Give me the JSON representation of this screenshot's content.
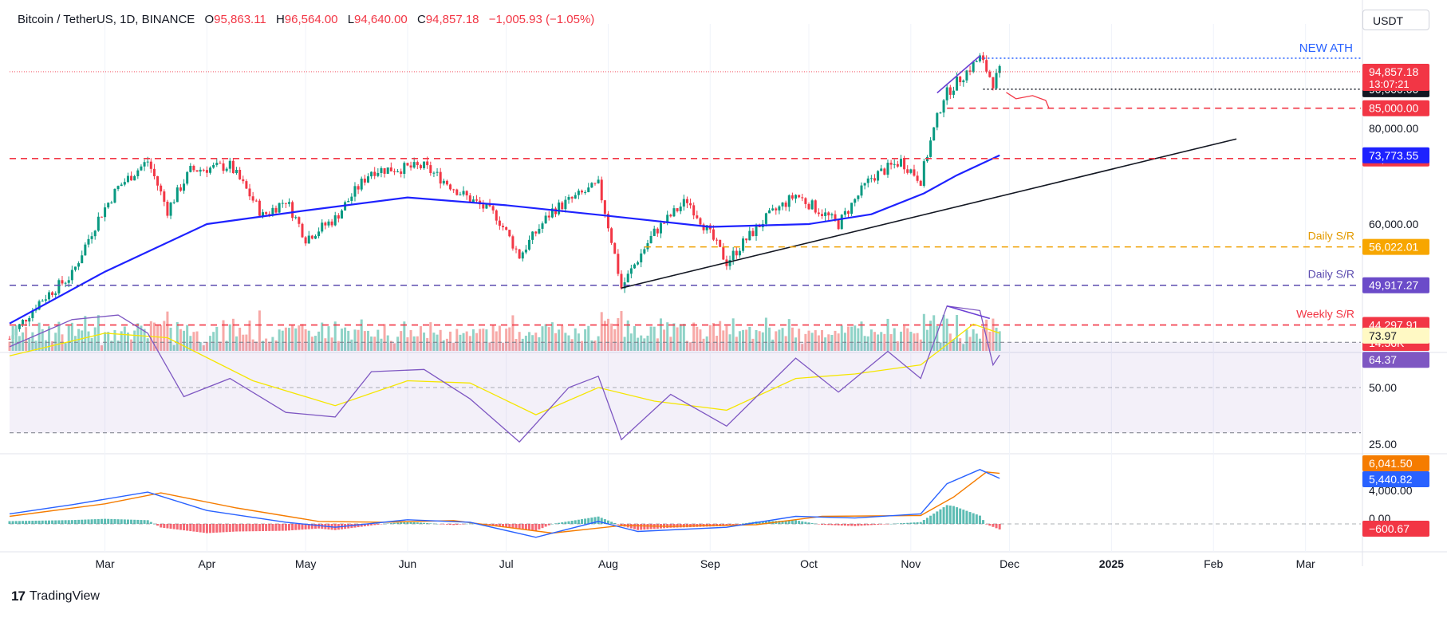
{
  "header": {
    "symbol": "Bitcoin / TetherUS, 1D, BINANCE",
    "open_label": "O",
    "open": "95,863.11",
    "high_label": "H",
    "high": "96,564.00",
    "low_label": "L",
    "low": "94,640.00",
    "close_label": "C",
    "close": "94,857.18",
    "change": "−1,005.93 (−1.05%)"
  },
  "currency_button": "USDT",
  "branding": "TradingView",
  "chart_data": {
    "type": "candlestick",
    "symbol": "BTC/USDT",
    "interval": "1D",
    "x_ticks": [
      "Mar",
      "Apr",
      "May",
      "Jun",
      "Jul",
      "Aug",
      "Sep",
      "Oct",
      "Nov",
      "Dec",
      "2025",
      "Feb",
      "Mar"
    ],
    "y_ticks": [
      "80,000.00",
      "60,000.00"
    ],
    "y_scale": "log",
    "price_path": [
      [
        "2024-02-01",
        42500
      ],
      [
        "2024-02-10",
        47500
      ],
      [
        "2024-02-20",
        51500
      ],
      [
        "2024-02-28",
        61000
      ],
      [
        "2024-03-05",
        67000
      ],
      [
        "2024-03-14",
        72500
      ],
      [
        "2024-03-20",
        62500
      ],
      [
        "2024-03-27",
        70500
      ],
      [
        "2024-04-08",
        71500
      ],
      [
        "2024-04-18",
        61500
      ],
      [
        "2024-04-25",
        64500
      ],
      [
        "2024-05-01",
        57500
      ],
      [
        "2024-05-10",
        61000
      ],
      [
        "2024-05-21",
        70500
      ],
      [
        "2024-06-06",
        71300
      ],
      [
        "2024-06-18",
        65500
      ],
      [
        "2024-06-28",
        61500
      ],
      [
        "2024-07-05",
        54500
      ],
      [
        "2024-07-15",
        62500
      ],
      [
        "2024-07-29",
        67500
      ],
      [
        "2024-08-05",
        49500
      ],
      [
        "2024-08-15",
        58500
      ],
      [
        "2024-08-25",
        64500
      ],
      [
        "2024-09-06",
        53500
      ],
      [
        "2024-09-17",
        60500
      ],
      [
        "2024-09-27",
        65500
      ],
      [
        "2024-10-10",
        60000
      ],
      [
        "2024-10-20",
        69000
      ],
      [
        "2024-10-29",
        72500
      ],
      [
        "2024-11-04",
        68500
      ],
      [
        "2024-11-11",
        88000
      ],
      [
        "2024-11-22",
        98900
      ],
      [
        "2024-11-26",
        91800
      ],
      [
        "2024-11-28",
        94857
      ]
    ],
    "ma_line": {
      "color": "#1e22ff",
      "points": [
        [
          "2024-02-01",
          44500
        ],
        [
          "2024-03-01",
          52000
        ],
        [
          "2024-04-01",
          60000
        ],
        [
          "2024-05-01",
          62500
        ],
        [
          "2024-06-01",
          65000
        ],
        [
          "2024-07-01",
          63500
        ],
        [
          "2024-08-01",
          61500
        ],
        [
          "2024-09-01",
          59500
        ],
        [
          "2024-10-01",
          60000
        ],
        [
          "2024-10-20",
          61800
        ],
        [
          "2024-11-05",
          65800
        ],
        [
          "2024-11-15",
          69500
        ],
        [
          "2024-11-28",
          73773.55
        ]
      ]
    },
    "levels": [
      {
        "price": 90000.0,
        "label": "90,000.00",
        "style": "dotted",
        "color": "#131722",
        "tag_bg": "#131722"
      },
      {
        "price": 85000.0,
        "label": "85,000.00",
        "style": "dashed",
        "color": "#f23645",
        "tag_bg": "#f23645"
      },
      {
        "price": 73072.41,
        "label": "73,072.41",
        "style": "dashed",
        "color": "#f23645",
        "tag_bg": "#f23645"
      },
      {
        "price": 56022.01,
        "label": "56,022.01",
        "style": "dashed",
        "color": "#f0a000",
        "tag_bg": "#f7a600",
        "annotation": "Daily S/R",
        "annotation_color": "#e39a00"
      },
      {
        "price": 49917.27,
        "label": "49,917.27",
        "style": "dashed",
        "color": "#5b4baf",
        "tag_bg": "#6b4bc9",
        "annotation": "Daily S/R",
        "annotation_color": "#5b4baf"
      },
      {
        "price": 44297.91,
        "label": "44,297.91",
        "style": "dashed",
        "color": "#f23645",
        "tag_bg": "#f23645",
        "annotation": "Weekly S/R",
        "annotation_color": "#f23645"
      }
    ],
    "ath_label": "NEW ATH",
    "ath_price": 99500,
    "last_price_tag": {
      "price": 94857.18,
      "label": "94,857.18",
      "countdown": "13:07:21",
      "color": "#f23645"
    },
    "ma_tag": {
      "price": 73773.55,
      "label": "73,773.55",
      "color": "#1e22ff"
    },
    "trendline": {
      "from": [
        "2024-08-05",
        49500
      ],
      "to": [
        "2025-02-08",
        77500
      ],
      "color": "#131722"
    },
    "volume": {
      "last_label": "14.56K",
      "last_color": "#f23645"
    },
    "rsi": {
      "rsi_label": "64.37",
      "rsi_color": "#7e57c2",
      "ma_label": "73.97",
      "ma_color": "#f5e600",
      "ticks": [
        "50.00",
        "25.00"
      ],
      "bands": [
        70,
        30
      ],
      "path": [
        [
          "2024-02-01",
          68
        ],
        [
          "2024-02-20",
          80
        ],
        [
          "2024-03-05",
          82
        ],
        [
          "2024-03-14",
          74
        ],
        [
          "2024-03-25",
          46
        ],
        [
          "2024-04-08",
          54
        ],
        [
          "2024-04-25",
          39
        ],
        [
          "2024-05-10",
          37
        ],
        [
          "2024-05-21",
          57
        ],
        [
          "2024-06-06",
          58
        ],
        [
          "2024-06-20",
          45
        ],
        [
          "2024-07-05",
          26
        ],
        [
          "2024-07-20",
          50
        ],
        [
          "2024-07-29",
          55
        ],
        [
          "2024-08-05",
          27
        ],
        [
          "2024-08-20",
          47
        ],
        [
          "2024-09-06",
          33
        ],
        [
          "2024-09-27",
          63
        ],
        [
          "2024-10-10",
          48
        ],
        [
          "2024-10-25",
          66
        ],
        [
          "2024-11-04",
          54
        ],
        [
          "2024-11-12",
          86
        ],
        [
          "2024-11-22",
          84
        ],
        [
          "2024-11-26",
          60
        ],
        [
          "2024-11-28",
          64.37
        ]
      ],
      "ma_path": [
        [
          "2024-02-01",
          64
        ],
        [
          "2024-03-01",
          74
        ],
        [
          "2024-03-20",
          72
        ],
        [
          "2024-04-15",
          53
        ],
        [
          "2024-05-10",
          42
        ],
        [
          "2024-06-01",
          53
        ],
        [
          "2024-06-20",
          52
        ],
        [
          "2024-07-10",
          38
        ],
        [
          "2024-07-29",
          50
        ],
        [
          "2024-08-15",
          44
        ],
        [
          "2024-09-06",
          40
        ],
        [
          "2024-09-27",
          54
        ],
        [
          "2024-10-15",
          56
        ],
        [
          "2024-11-04",
          60
        ],
        [
          "2024-11-20",
          78
        ],
        [
          "2024-11-28",
          73.97
        ]
      ]
    },
    "macd": {
      "macd_label": "5,440.82",
      "macd_color": "#2962ff",
      "signal_label": "6,041.50",
      "signal_color": "#f57c00",
      "hist_label": "−600.67",
      "hist_color": "#f23645",
      "ticks": [
        "4,000.00",
        "0.00"
      ],
      "macd_path": [
        [
          "2024-02-01",
          1200
        ],
        [
          "2024-02-20",
          2300
        ],
        [
          "2024-03-14",
          3800
        ],
        [
          "2024-04-01",
          1600
        ],
        [
          "2024-04-25",
          200
        ],
        [
          "2024-05-10",
          -400
        ],
        [
          "2024-06-01",
          500
        ],
        [
          "2024-06-20",
          200
        ],
        [
          "2024-07-10",
          -1600
        ],
        [
          "2024-07-29",
          300
        ],
        [
          "2024-08-10",
          -900
        ],
        [
          "2024-09-06",
          -400
        ],
        [
          "2024-09-27",
          900
        ],
        [
          "2024-10-15",
          700
        ],
        [
          "2024-11-04",
          1200
        ],
        [
          "2024-11-12",
          4800
        ],
        [
          "2024-11-22",
          6500
        ],
        [
          "2024-11-28",
          5440.82
        ]
      ],
      "signal_path": [
        [
          "2024-02-01",
          900
        ],
        [
          "2024-03-01",
          2400
        ],
        [
          "2024-03-18",
          3700
        ],
        [
          "2024-04-10",
          1900
        ],
        [
          "2024-05-05",
          300
        ],
        [
          "2024-05-25",
          200
        ],
        [
          "2024-06-15",
          400
        ],
        [
          "2024-07-15",
          -1100
        ],
        [
          "2024-08-05",
          -200
        ],
        [
          "2024-08-20",
          -300
        ],
        [
          "2024-09-15",
          -100
        ],
        [
          "2024-10-05",
          900
        ],
        [
          "2024-11-04",
          1000
        ],
        [
          "2024-11-14",
          3200
        ],
        [
          "2024-11-24",
          6200
        ],
        [
          "2024-11-28",
          6041.5
        ]
      ]
    }
  }
}
